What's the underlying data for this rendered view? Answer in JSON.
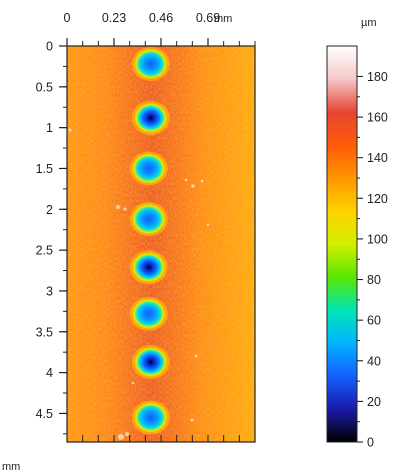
{
  "chart_data": {
    "type": "heatmap",
    "title": "",
    "x_unit": "mm",
    "y_unit": "mm",
    "x_ticks": [
      "0",
      "0.23",
      "0.46",
      "0.69"
    ],
    "x_tick_values": [
      0,
      0.23,
      0.46,
      0.69
    ],
    "xlim": [
      0,
      0.92
    ],
    "y_ticks": [
      "0",
      "0.5",
      "1",
      "1.5",
      "2",
      "2.5",
      "3",
      "3.5",
      "4",
      "4.5"
    ],
    "y_tick_values": [
      0,
      0.5,
      1,
      1.5,
      2,
      2.5,
      3,
      3.5,
      4,
      4.5
    ],
    "ylim": [
      0,
      4.85
    ],
    "y_inverted": true,
    "colorbar": {
      "unit": "µm",
      "ticks": [
        "0",
        "20",
        "40",
        "60",
        "80",
        "100",
        "120",
        "140",
        "160",
        "180"
      ],
      "tick_values": [
        0,
        20,
        40,
        60,
        80,
        100,
        120,
        140,
        160,
        180
      ],
      "range": [
        0,
        195
      ],
      "colors": [
        "#000000",
        "#1a1aa8",
        "#1560ff",
        "#00b4ff",
        "#00e6b4",
        "#5ae600",
        "#d2f000",
        "#ffd200",
        "#ff9600",
        "#ff5a0a",
        "#e64632",
        "#f5c8c8",
        "#ffffff"
      ]
    },
    "background_level_um": 150,
    "wells": [
      {
        "x": 0.41,
        "y": 0.22,
        "depth_um": 30
      },
      {
        "x": 0.41,
        "y": 0.88,
        "depth_um": 8
      },
      {
        "x": 0.4,
        "y": 1.5,
        "depth_um": 28
      },
      {
        "x": 0.4,
        "y": 2.12,
        "depth_um": 22
      },
      {
        "x": 0.4,
        "y": 2.71,
        "depth_um": 16
      },
      {
        "x": 0.4,
        "y": 3.28,
        "depth_um": 25
      },
      {
        "x": 0.41,
        "y": 3.87,
        "depth_um": 18
      },
      {
        "x": 0.41,
        "y": 4.55,
        "depth_um": 22
      }
    ]
  }
}
